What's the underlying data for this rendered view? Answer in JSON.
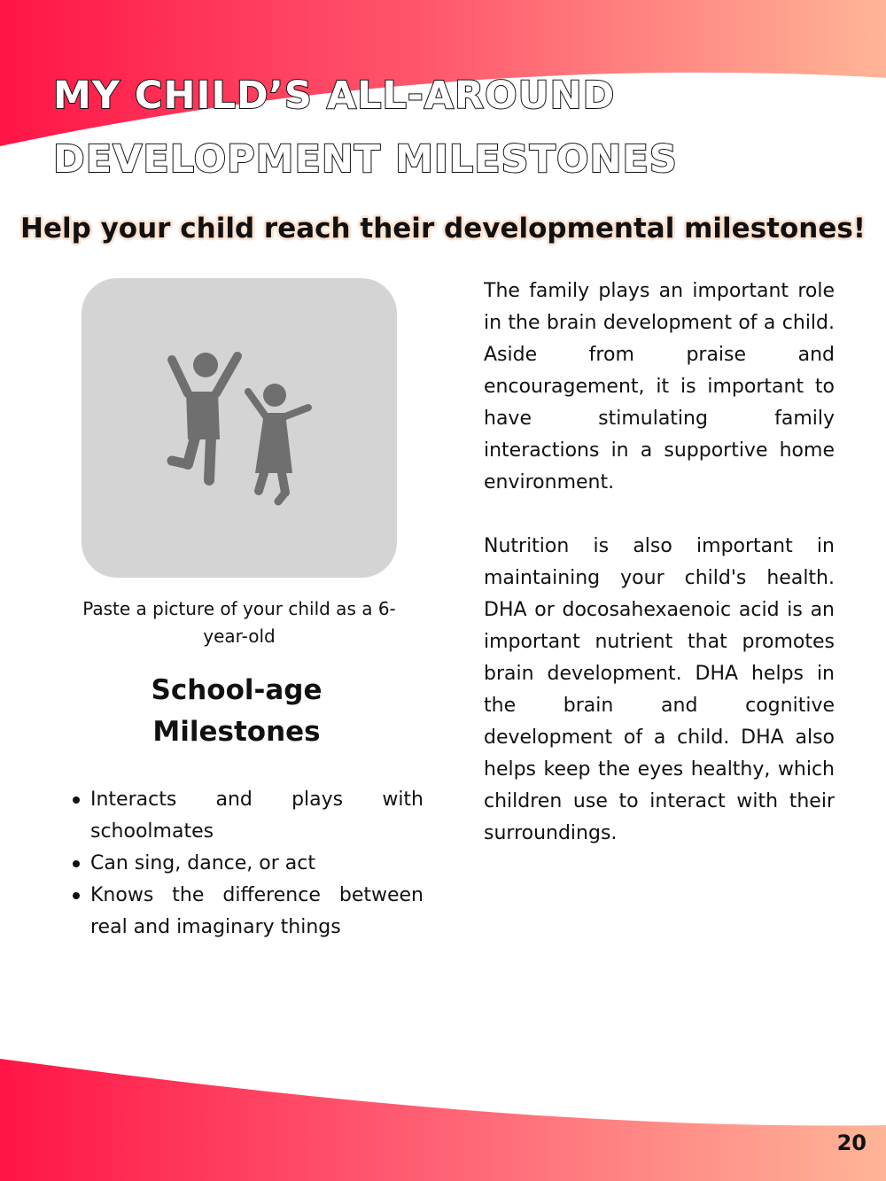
{
  "page": {
    "title": "My Child’s All-Around Development Milestones",
    "subtitle": "Help your child reach their developmental milestones!",
    "page_number": "20"
  },
  "photo": {
    "icon": "children-jumping-icon",
    "caption": "Paste a picture of your child as a 6-year-old"
  },
  "milestones": {
    "heading": "School-age Milestones",
    "items": [
      "Interacts and plays with schoolmates",
      "Can sing, dance, or act",
      "Knows the difference between real and imaginary things"
    ]
  },
  "body": {
    "paragraphs": [
      "The family plays an important role in the brain development of a child. Aside from praise and encouragement, it is important to have stimulating family interactions in a supportive home environment.",
      "Nutrition is also important in maintaining your child's health. DHA or docosahexaenoic acid is an important nutrient that promotes brain development. DHA helps in the brain and cognitive development of a child. DHA also helps keep the eyes healthy, which children use to interact with their surroundings."
    ]
  },
  "colors": {
    "accent_red": "#ff1546",
    "accent_peach": "#ffb597",
    "photo_box": "#d4d4d4",
    "icon_gray": "#6f6f6f"
  }
}
